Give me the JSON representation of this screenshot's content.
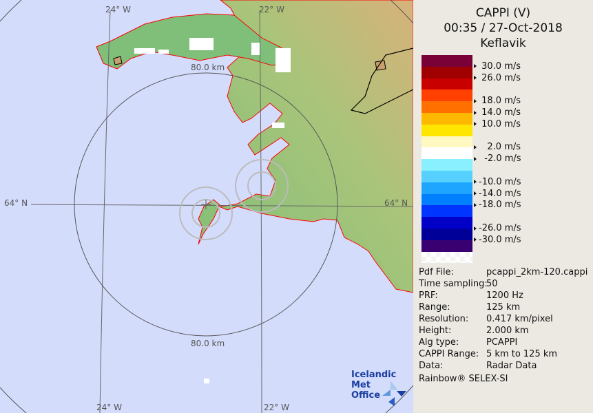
{
  "header": {
    "product": "CAPPI (V)",
    "datetime": "00:35 / 27-Oct-2018",
    "site": "Keflavik"
  },
  "legend": {
    "bands": [
      "#7a0038",
      "#a00000",
      "#c80000",
      "#ff4000",
      "#ff7000",
      "#ffb800",
      "#ffe600",
      "#fff8c0",
      "#ffffff",
      "#88f0ff",
      "#55d0ff",
      "#1ea5ff",
      "#0080ff",
      "#0035ff",
      "#0000c8",
      "#000098",
      "#380070"
    ],
    "ticks": [
      {
        "label": " 30.0 m/s",
        "after_band": 1
      },
      {
        "label": " 26.0 m/s",
        "after_band": 2
      },
      {
        "label": " 18.0 m/s",
        "after_band": 4
      },
      {
        "label": " 14.0 m/s",
        "after_band": 5
      },
      {
        "label": " 10.0 m/s",
        "after_band": 6
      },
      {
        "label": "   2.0 m/s",
        "after_band": 8
      },
      {
        "label": "  -2.0 m/s",
        "after_band": 9
      },
      {
        "label": "-10.0 m/s",
        "after_band": 11
      },
      {
        "label": "-14.0 m/s",
        "after_band": 12
      },
      {
        "label": "-18.0 m/s",
        "after_band": 13
      },
      {
        "label": "-26.0 m/s",
        "after_band": 15
      },
      {
        "label": "-30.0 m/s",
        "after_band": 16
      }
    ]
  },
  "info": [
    {
      "key": "Pdf File:",
      "value": "pcappi_2km-120.cappi"
    },
    {
      "key": "Time sampling:",
      "value": "50"
    },
    {
      "key": "PRF:",
      "value": "1200 Hz"
    },
    {
      "key": "Range:",
      "value": "125 km"
    },
    {
      "key": "Resolution:",
      "value": "0.417 km/pixel"
    },
    {
      "key": "Height:",
      "value": "2.000 km"
    },
    {
      "key": "Alg type:",
      "value": "PCAPPI"
    },
    {
      "key": "CAPPI Range:",
      "value": "5 km to 125 km"
    },
    {
      "key": "Data:",
      "value": "Radar Data"
    }
  ],
  "credit": "Rainbow® SELEX-SI",
  "map": {
    "lon_labels": [
      "24° W",
      "22° W",
      "24° W",
      "22° W"
    ],
    "lat_labels": [
      "64° N",
      "64° N"
    ],
    "range_labels": [
      "80.0 km",
      "80.0 km"
    ],
    "colors": {
      "sea": "#d4dcfc",
      "land": "#7fbf7a",
      "coast": "#ff0000"
    }
  },
  "logo": {
    "line1": "Icelandic Met",
    "line2": "Office"
  }
}
